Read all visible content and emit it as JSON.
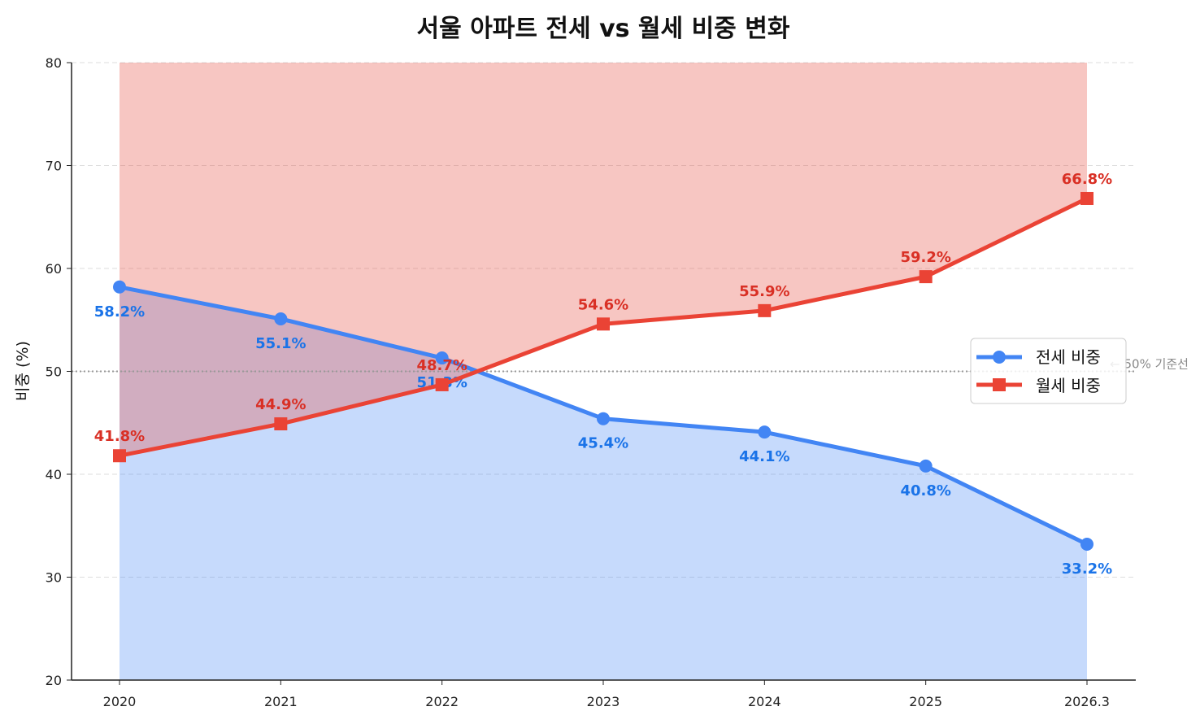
{
  "chart_data": {
    "type": "line",
    "title": "서울 아파트 전세 vs 월세 비중 변화",
    "xlabel": "",
    "ylabel": "비중 (%)",
    "categories": [
      "2020",
      "2021",
      "2022",
      "2023",
      "2024",
      "2025",
      "2026.3"
    ],
    "ylim": [
      20,
      80
    ],
    "yticks": [
      20,
      30,
      40,
      50,
      60,
      70,
      80
    ],
    "grid": "horizontal dashed",
    "legend_position": "center-right",
    "series": [
      {
        "name": "전세 비중",
        "values": [
          58.2,
          55.1,
          51.3,
          45.4,
          44.1,
          40.8,
          33.2
        ],
        "labels": [
          "58.2%",
          "55.1%",
          "51.3%",
          "45.4%",
          "44.1%",
          "40.8%",
          "33.2%"
        ],
        "color": "#4285f4",
        "marker": "circle"
      },
      {
        "name": "월세 비중",
        "values": [
          41.8,
          44.9,
          48.7,
          54.6,
          55.9,
          59.2,
          66.8
        ],
        "labels": [
          "41.8%",
          "44.9%",
          "48.7%",
          "54.6%",
          "55.9%",
          "59.2%",
          "66.8%"
        ],
        "color": "#ea4335",
        "marker": "square"
      }
    ],
    "reference_line": {
      "value": 50,
      "label": "← 50% 기준선"
    }
  }
}
